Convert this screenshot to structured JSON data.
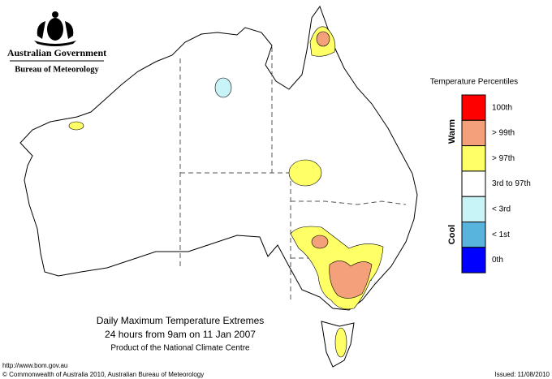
{
  "header": {
    "title": "Australian Government",
    "subtitle": "Bureau of Meteorology"
  },
  "legend": {
    "title": "Temperature Percentiles",
    "warm_label": "Warm",
    "cool_label": "Cool",
    "items": [
      {
        "label": "100th",
        "color": "#ff0000"
      },
      {
        "label": "> 99th",
        "color": "#f4a07a"
      },
      {
        "label": "> 97th",
        "color": "#ffff66"
      },
      {
        "label": "3rd to 97th",
        "color": "#ffffff"
      },
      {
        "label": "< 3rd",
        "color": "#c8f4f8"
      },
      {
        "label": "< 1st",
        "color": "#58b4dc"
      },
      {
        "label": "0th",
        "color": "#0000ff"
      }
    ]
  },
  "caption": {
    "line1": "Daily Maximum Temperature Extremes",
    "line2": "24 hours from 9am on 11 Jan 2007",
    "line3": "Product of the National Climate Centre"
  },
  "footer": {
    "url": "http://www.bom.gov.au",
    "copyright": "© Commonwealth of Australia 2010, Australian Bureau of Meteorology",
    "issued": "Issued: 11/08/2010"
  }
}
